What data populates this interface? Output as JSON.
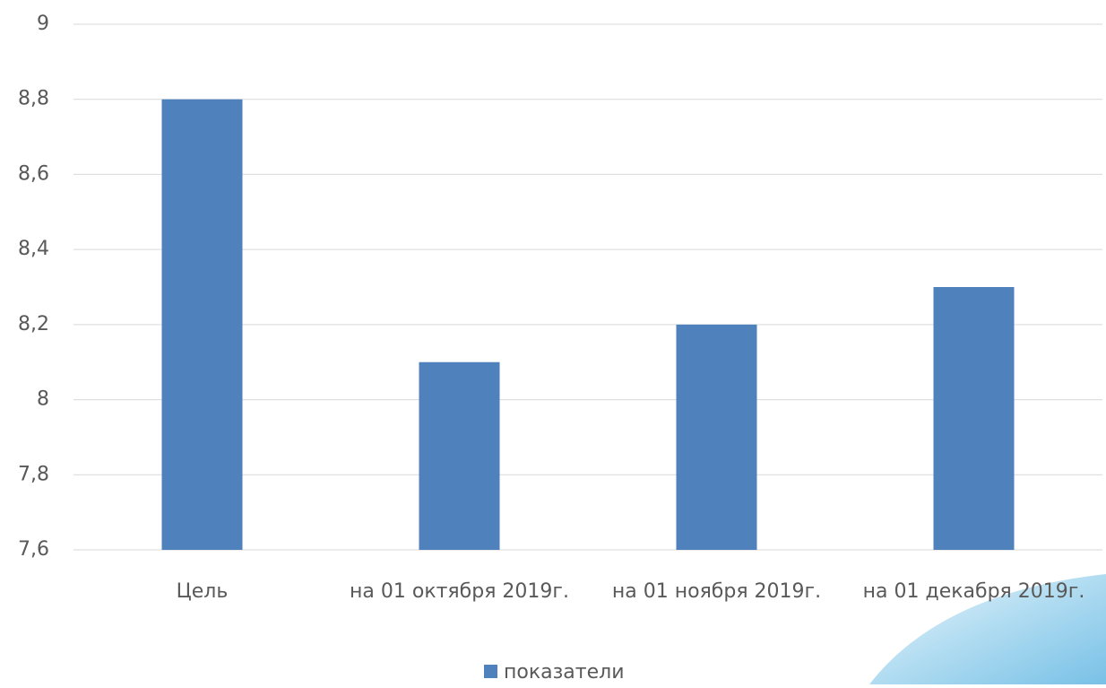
{
  "chart_data": {
    "type": "bar",
    "categories": [
      "Цель",
      "на 01 октября 2019г.",
      "на 01 ноября 2019г.",
      "на 01 декабря 2019г."
    ],
    "series": [
      {
        "name": "показатели",
        "color": "#4f81bd",
        "values": [
          8.8,
          8.1,
          8.2,
          8.3
        ]
      }
    ],
    "ylim": [
      7.6,
      9
    ],
    "yticks": [
      {
        "value": 7.6,
        "label": "7,6"
      },
      {
        "value": 7.8,
        "label": "7,8"
      },
      8,
      {
        "value": 8.2,
        "label": "8,2"
      },
      {
        "value": 8.4,
        "label": "8,4"
      },
      {
        "value": 8.6,
        "label": "8,6"
      },
      {
        "value": 8.8,
        "label": "8,8"
      },
      9
    ],
    "grid": true,
    "legend": "bottom"
  }
}
